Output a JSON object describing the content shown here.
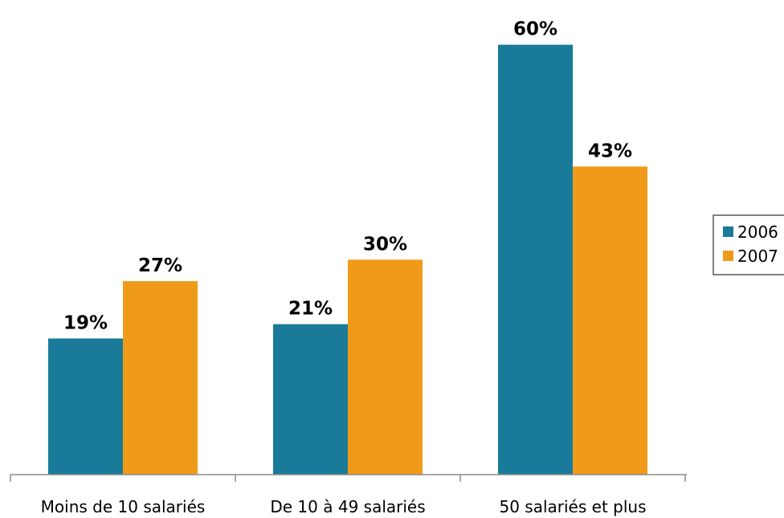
{
  "chart_data": {
    "type": "bar",
    "categories": [
      "Moins de 10 salariés",
      "De 10 à 49 salariés",
      "50 salariés et plus"
    ],
    "series": [
      {
        "name": "2006",
        "values": [
          19,
          21,
          60
        ],
        "labels": [
          "19%",
          "21%",
          "60%"
        ],
        "color": "#197B99"
      },
      {
        "name": "2007",
        "values": [
          27,
          30,
          43
        ],
        "labels": [
          "27%",
          "30%",
          "43%"
        ],
        "color": "#F09A1A"
      }
    ],
    "title": "",
    "xlabel": "",
    "ylabel": "",
    "ylim": [
      0,
      64
    ],
    "grid": false,
    "legend": "right",
    "axis_color": "#8C8C8C"
  }
}
